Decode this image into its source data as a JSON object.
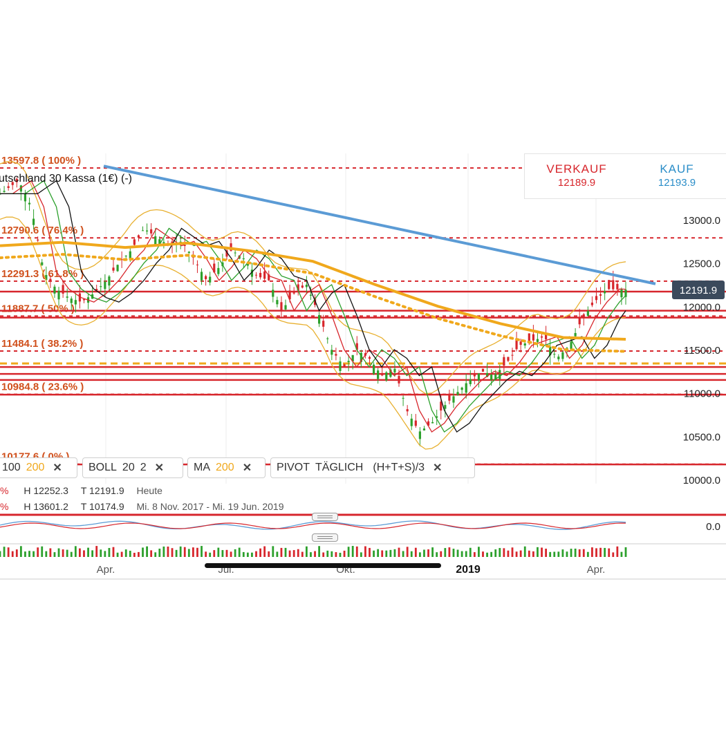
{
  "title": "utschland 30 Kassa (1€) (-)",
  "quote": {
    "sell_label": "VERKAUF",
    "sell_value": "12189.9",
    "buy_label": "KAUF",
    "buy_value": "12193.9",
    "current_price_label": "12191.9"
  },
  "colors": {
    "fib": "#d7262c",
    "fib_text": "#d0501c",
    "trendline": "#5b9bd5",
    "ma200": "#f0a81c",
    "boll": "#e8b030",
    "up": "#2ca02c",
    "down": "#d7262c",
    "price_tag": "#3b4a5c"
  },
  "indicators": [
    {
      "label": "",
      "value": "100",
      "value2": "200"
    },
    {
      "label": "BOLL",
      "value": "20",
      "value2": "2"
    },
    {
      "label": "MA",
      "value": "200"
    },
    {
      "label": "PIVOT",
      "value": "TÄGLICH",
      "value2": "(H+T+S)/3"
    }
  ],
  "stats": [
    {
      "prefix": "%",
      "high": "H 12252.3",
      "low": "T 12191.9",
      "range": "Heute"
    },
    {
      "prefix": "%",
      "high": "H 13601.2",
      "low": "T 10174.9",
      "range": "Mi. 8 Nov. 2017 - Mi. 19 Jun. 2019"
    }
  ],
  "oscillator_label": "0.0",
  "chart_data": {
    "type": "candlestick",
    "x_range": [
      "2018-01",
      "2019-04"
    ],
    "x_ticks": [
      "Apr.",
      "Jul.",
      "Okt.",
      "2019",
      "Apr."
    ],
    "y_ticks": [
      13000,
      12500,
      12000,
      11500,
      11000,
      10500,
      10000
    ],
    "y_tick_labels": [
      "13000.0",
      "12500.0",
      "12000.0",
      "11500.0",
      "11000.0",
      "10500.0",
      "10000.0"
    ],
    "ylim": [
      10000,
      13900
    ],
    "fib_levels": [
      {
        "label": "13597.8 ( 100% )",
        "value": 13597.8
      },
      {
        "label": "12790.6 ( 76.4% )",
        "value": 12790.6
      },
      {
        "label": "12291.3 ( 61.8% )",
        "value": 12291.3
      },
      {
        "label": "11887.7 ( 50% )",
        "value": 11887.7
      },
      {
        "label": "11484.1 ( 38.2% )",
        "value": 11484.1
      },
      {
        "label": "10984.8 ( 23.6% )",
        "value": 10984.8
      },
      {
        "label": "10177.6 ( 0% )",
        "value": 10177.6
      }
    ],
    "close_series": [
      {
        "x": 0.0,
        "y": 13300
      },
      {
        "x": 0.03,
        "y": 13450
      },
      {
        "x": 0.05,
        "y": 13150
      },
      {
        "x": 0.07,
        "y": 12400
      },
      {
        "x": 0.09,
        "y": 12200
      },
      {
        "x": 0.11,
        "y": 12100
      },
      {
        "x": 0.13,
        "y": 12050
      },
      {
        "x": 0.15,
        "y": 12150
      },
      {
        "x": 0.17,
        "y": 12300
      },
      {
        "x": 0.19,
        "y": 12500
      },
      {
        "x": 0.21,
        "y": 12650
      },
      {
        "x": 0.23,
        "y": 12900
      },
      {
        "x": 0.25,
        "y": 12800
      },
      {
        "x": 0.27,
        "y": 12700
      },
      {
        "x": 0.29,
        "y": 12750
      },
      {
        "x": 0.31,
        "y": 12550
      },
      {
        "x": 0.33,
        "y": 12300
      },
      {
        "x": 0.35,
        "y": 12450
      },
      {
        "x": 0.37,
        "y": 12650
      },
      {
        "x": 0.39,
        "y": 12550
      },
      {
        "x": 0.41,
        "y": 12350
      },
      {
        "x": 0.43,
        "y": 12300
      },
      {
        "x": 0.45,
        "y": 11950
      },
      {
        "x": 0.47,
        "y": 12150
      },
      {
        "x": 0.49,
        "y": 12250
      },
      {
        "x": 0.51,
        "y": 11900
      },
      {
        "x": 0.53,
        "y": 11500
      },
      {
        "x": 0.55,
        "y": 11300
      },
      {
        "x": 0.57,
        "y": 11500
      },
      {
        "x": 0.59,
        "y": 11400
      },
      {
        "x": 0.61,
        "y": 11200
      },
      {
        "x": 0.63,
        "y": 11300
      },
      {
        "x": 0.65,
        "y": 10800
      },
      {
        "x": 0.67,
        "y": 10550
      },
      {
        "x": 0.69,
        "y": 10650
      },
      {
        "x": 0.71,
        "y": 10850
      },
      {
        "x": 0.73,
        "y": 11000
      },
      {
        "x": 0.75,
        "y": 11150
      },
      {
        "x": 0.77,
        "y": 11250
      },
      {
        "x": 0.79,
        "y": 11200
      },
      {
        "x": 0.81,
        "y": 11350
      },
      {
        "x": 0.83,
        "y": 11550
      },
      {
        "x": 0.85,
        "y": 11600
      },
      {
        "x": 0.87,
        "y": 11650
      },
      {
        "x": 0.89,
        "y": 11400
      },
      {
        "x": 0.91,
        "y": 11550
      },
      {
        "x": 0.93,
        "y": 11850
      },
      {
        "x": 0.95,
        "y": 12050
      },
      {
        "x": 0.97,
        "y": 12200
      },
      {
        "x": 1.0,
        "y": 12191.9
      }
    ],
    "ma200_series": [
      {
        "x": 0.0,
        "y": 12700
      },
      {
        "x": 0.1,
        "y": 12740
      },
      {
        "x": 0.2,
        "y": 12680
      },
      {
        "x": 0.3,
        "y": 12730
      },
      {
        "x": 0.4,
        "y": 12640
      },
      {
        "x": 0.5,
        "y": 12520
      },
      {
        "x": 0.6,
        "y": 12250
      },
      {
        "x": 0.7,
        "y": 12000
      },
      {
        "x": 0.8,
        "y": 11800
      },
      {
        "x": 0.9,
        "y": 11640
      },
      {
        "x": 1.0,
        "y": 11620
      }
    ],
    "trendline": [
      {
        "x": 0.0,
        "y": 13700
      },
      {
        "x": 1.0,
        "y": 12300
      }
    ]
  }
}
